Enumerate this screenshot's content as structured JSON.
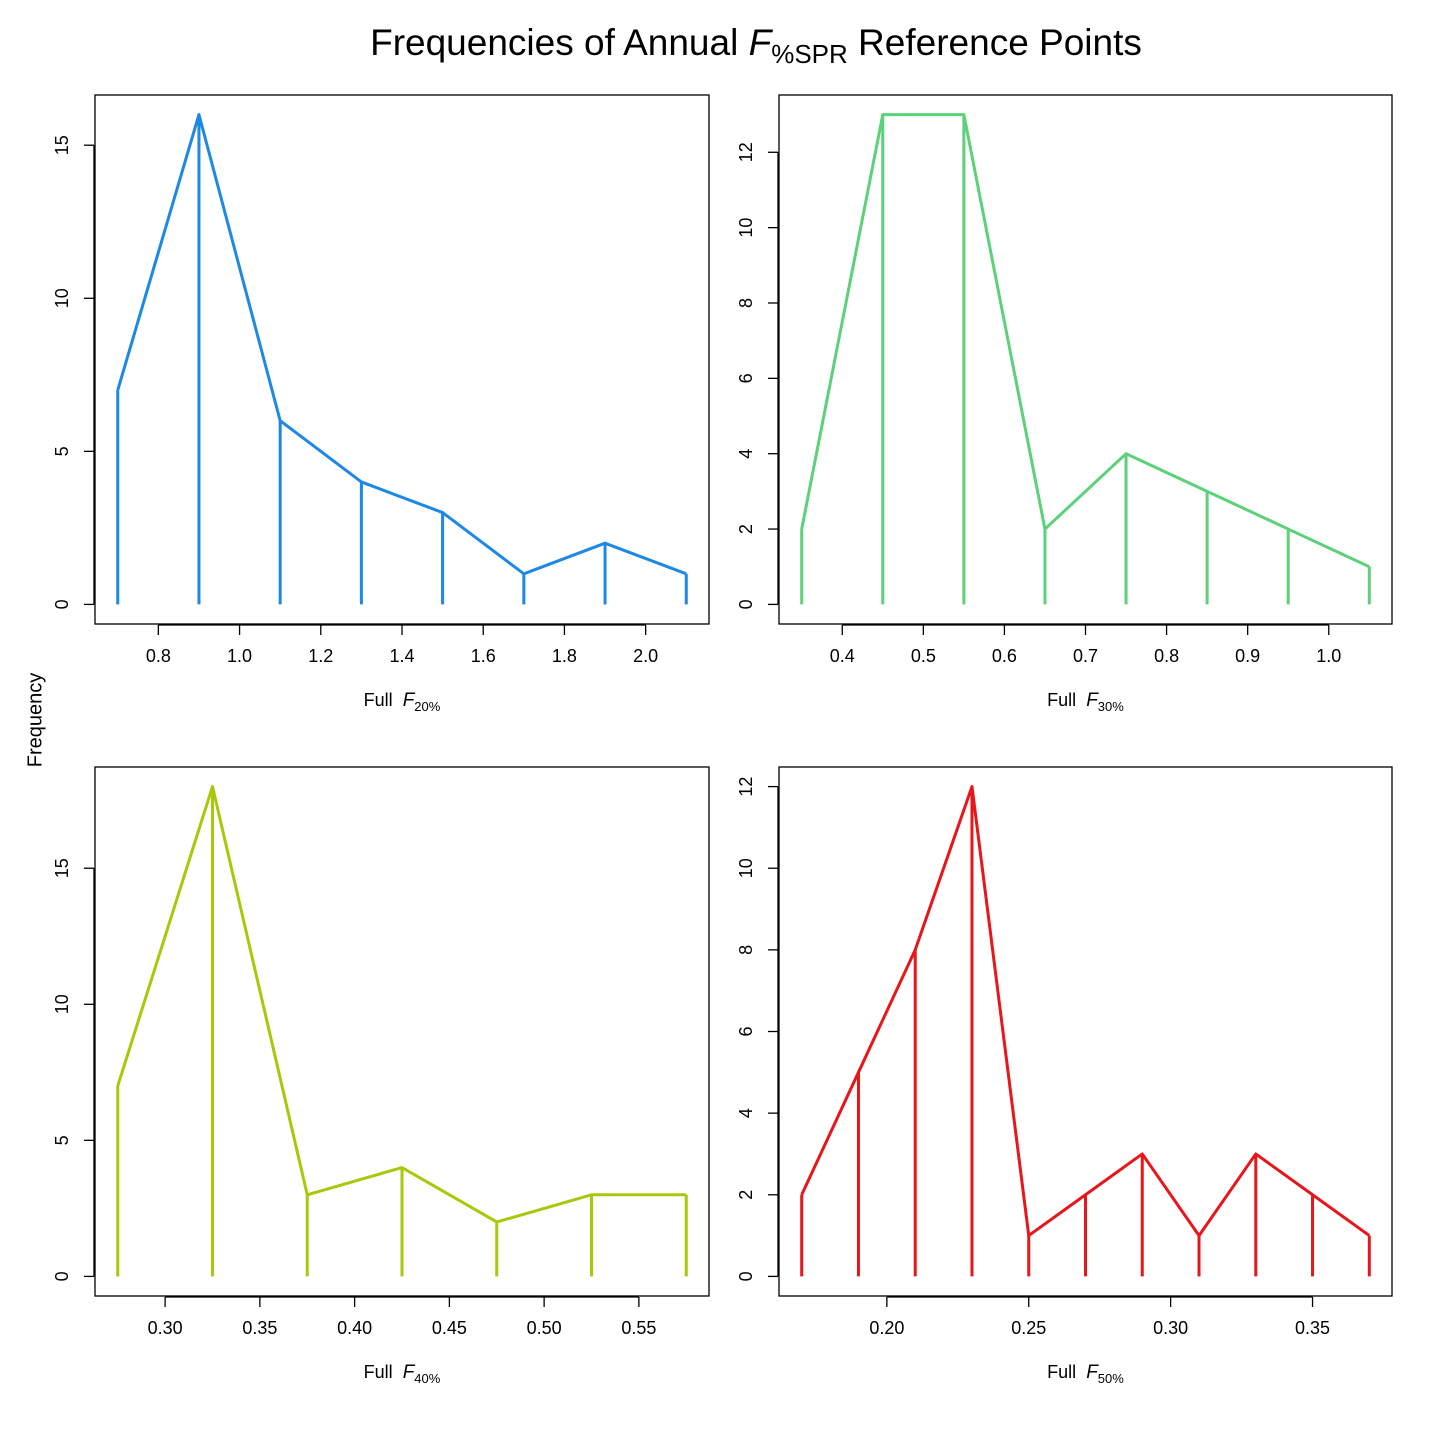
{
  "title": {
    "pre": "Frequencies of Annual ",
    "italic": "F",
    "sub": "%SPR",
    "post": " Reference Points"
  },
  "ylabel": "Frequency",
  "chart_data": [
    {
      "type": "line",
      "panel": "top-left",
      "color": "#1E88E5",
      "xlabel": {
        "pre": "Full ",
        "italic": "F",
        "sub": "20%"
      },
      "x": [
        0.7,
        0.9,
        1.1,
        1.3,
        1.5,
        1.7,
        1.9,
        2.1
      ],
      "y": [
        7,
        16,
        6,
        4,
        3,
        1,
        2,
        1
      ],
      "xticks": [
        0.8,
        1.0,
        1.2,
        1.4,
        1.6,
        1.8,
        2.0
      ],
      "xtick_labels": [
        "0.8",
        "1.0",
        "1.2",
        "1.4",
        "1.6",
        "1.8",
        "2.0"
      ],
      "yticks": [
        0,
        5,
        10,
        15
      ],
      "ytick_labels": [
        "0",
        "5",
        "10",
        "15"
      ]
    },
    {
      "type": "line",
      "panel": "top-right",
      "color": "#5DD17A",
      "xlabel": {
        "pre": "Full ",
        "italic": "F",
        "sub": "30%"
      },
      "x": [
        0.35,
        0.45,
        0.55,
        0.65,
        0.75,
        0.85,
        0.95,
        1.05
      ],
      "y": [
        2,
        13,
        13,
        2,
        4,
        3,
        2,
        1
      ],
      "xticks": [
        0.4,
        0.5,
        0.6,
        0.7,
        0.8,
        0.9,
        1.0
      ],
      "xtick_labels": [
        "0.4",
        "0.5",
        "0.6",
        "0.7",
        "0.8",
        "0.9",
        "1.0"
      ],
      "yticks": [
        0,
        2,
        4,
        6,
        8,
        10,
        12
      ],
      "ytick_labels": [
        "0",
        "2",
        "4",
        "6",
        "8",
        "10",
        "12"
      ]
    },
    {
      "type": "line",
      "panel": "bottom-left",
      "color": "#A8C80A",
      "xlabel": {
        "pre": "Full ",
        "italic": "F",
        "sub": "40%"
      },
      "x": [
        0.275,
        0.325,
        0.375,
        0.425,
        0.475,
        0.525,
        0.575
      ],
      "y": [
        7,
        18,
        3,
        4,
        2,
        3,
        3
      ],
      "xticks": [
        0.3,
        0.35,
        0.4,
        0.45,
        0.5,
        0.55
      ],
      "xtick_labels": [
        "0.30",
        "0.35",
        "0.40",
        "0.45",
        "0.50",
        "0.55"
      ],
      "yticks": [
        0,
        5,
        10,
        15
      ],
      "ytick_labels": [
        "0",
        "5",
        "10",
        "15"
      ]
    },
    {
      "type": "line",
      "panel": "bottom-right",
      "color": "#E8161B",
      "xlabel": {
        "pre": "Full ",
        "italic": "F",
        "sub": "50%"
      },
      "x": [
        0.17,
        0.19,
        0.21,
        0.23,
        0.25,
        0.27,
        0.29,
        0.31,
        0.33,
        0.35,
        0.37
      ],
      "y": [
        2,
        5,
        8,
        12,
        1,
        2,
        3,
        1,
        3,
        2,
        1
      ],
      "xticks": [
        0.2,
        0.25,
        0.3,
        0.35
      ],
      "xtick_labels": [
        "0.20",
        "0.25",
        "0.30",
        "0.35"
      ],
      "yticks": [
        0,
        2,
        4,
        6,
        8,
        10,
        12
      ],
      "ytick_labels": [
        "0",
        "2",
        "4",
        "6",
        "8",
        "10",
        "12"
      ]
    }
  ]
}
